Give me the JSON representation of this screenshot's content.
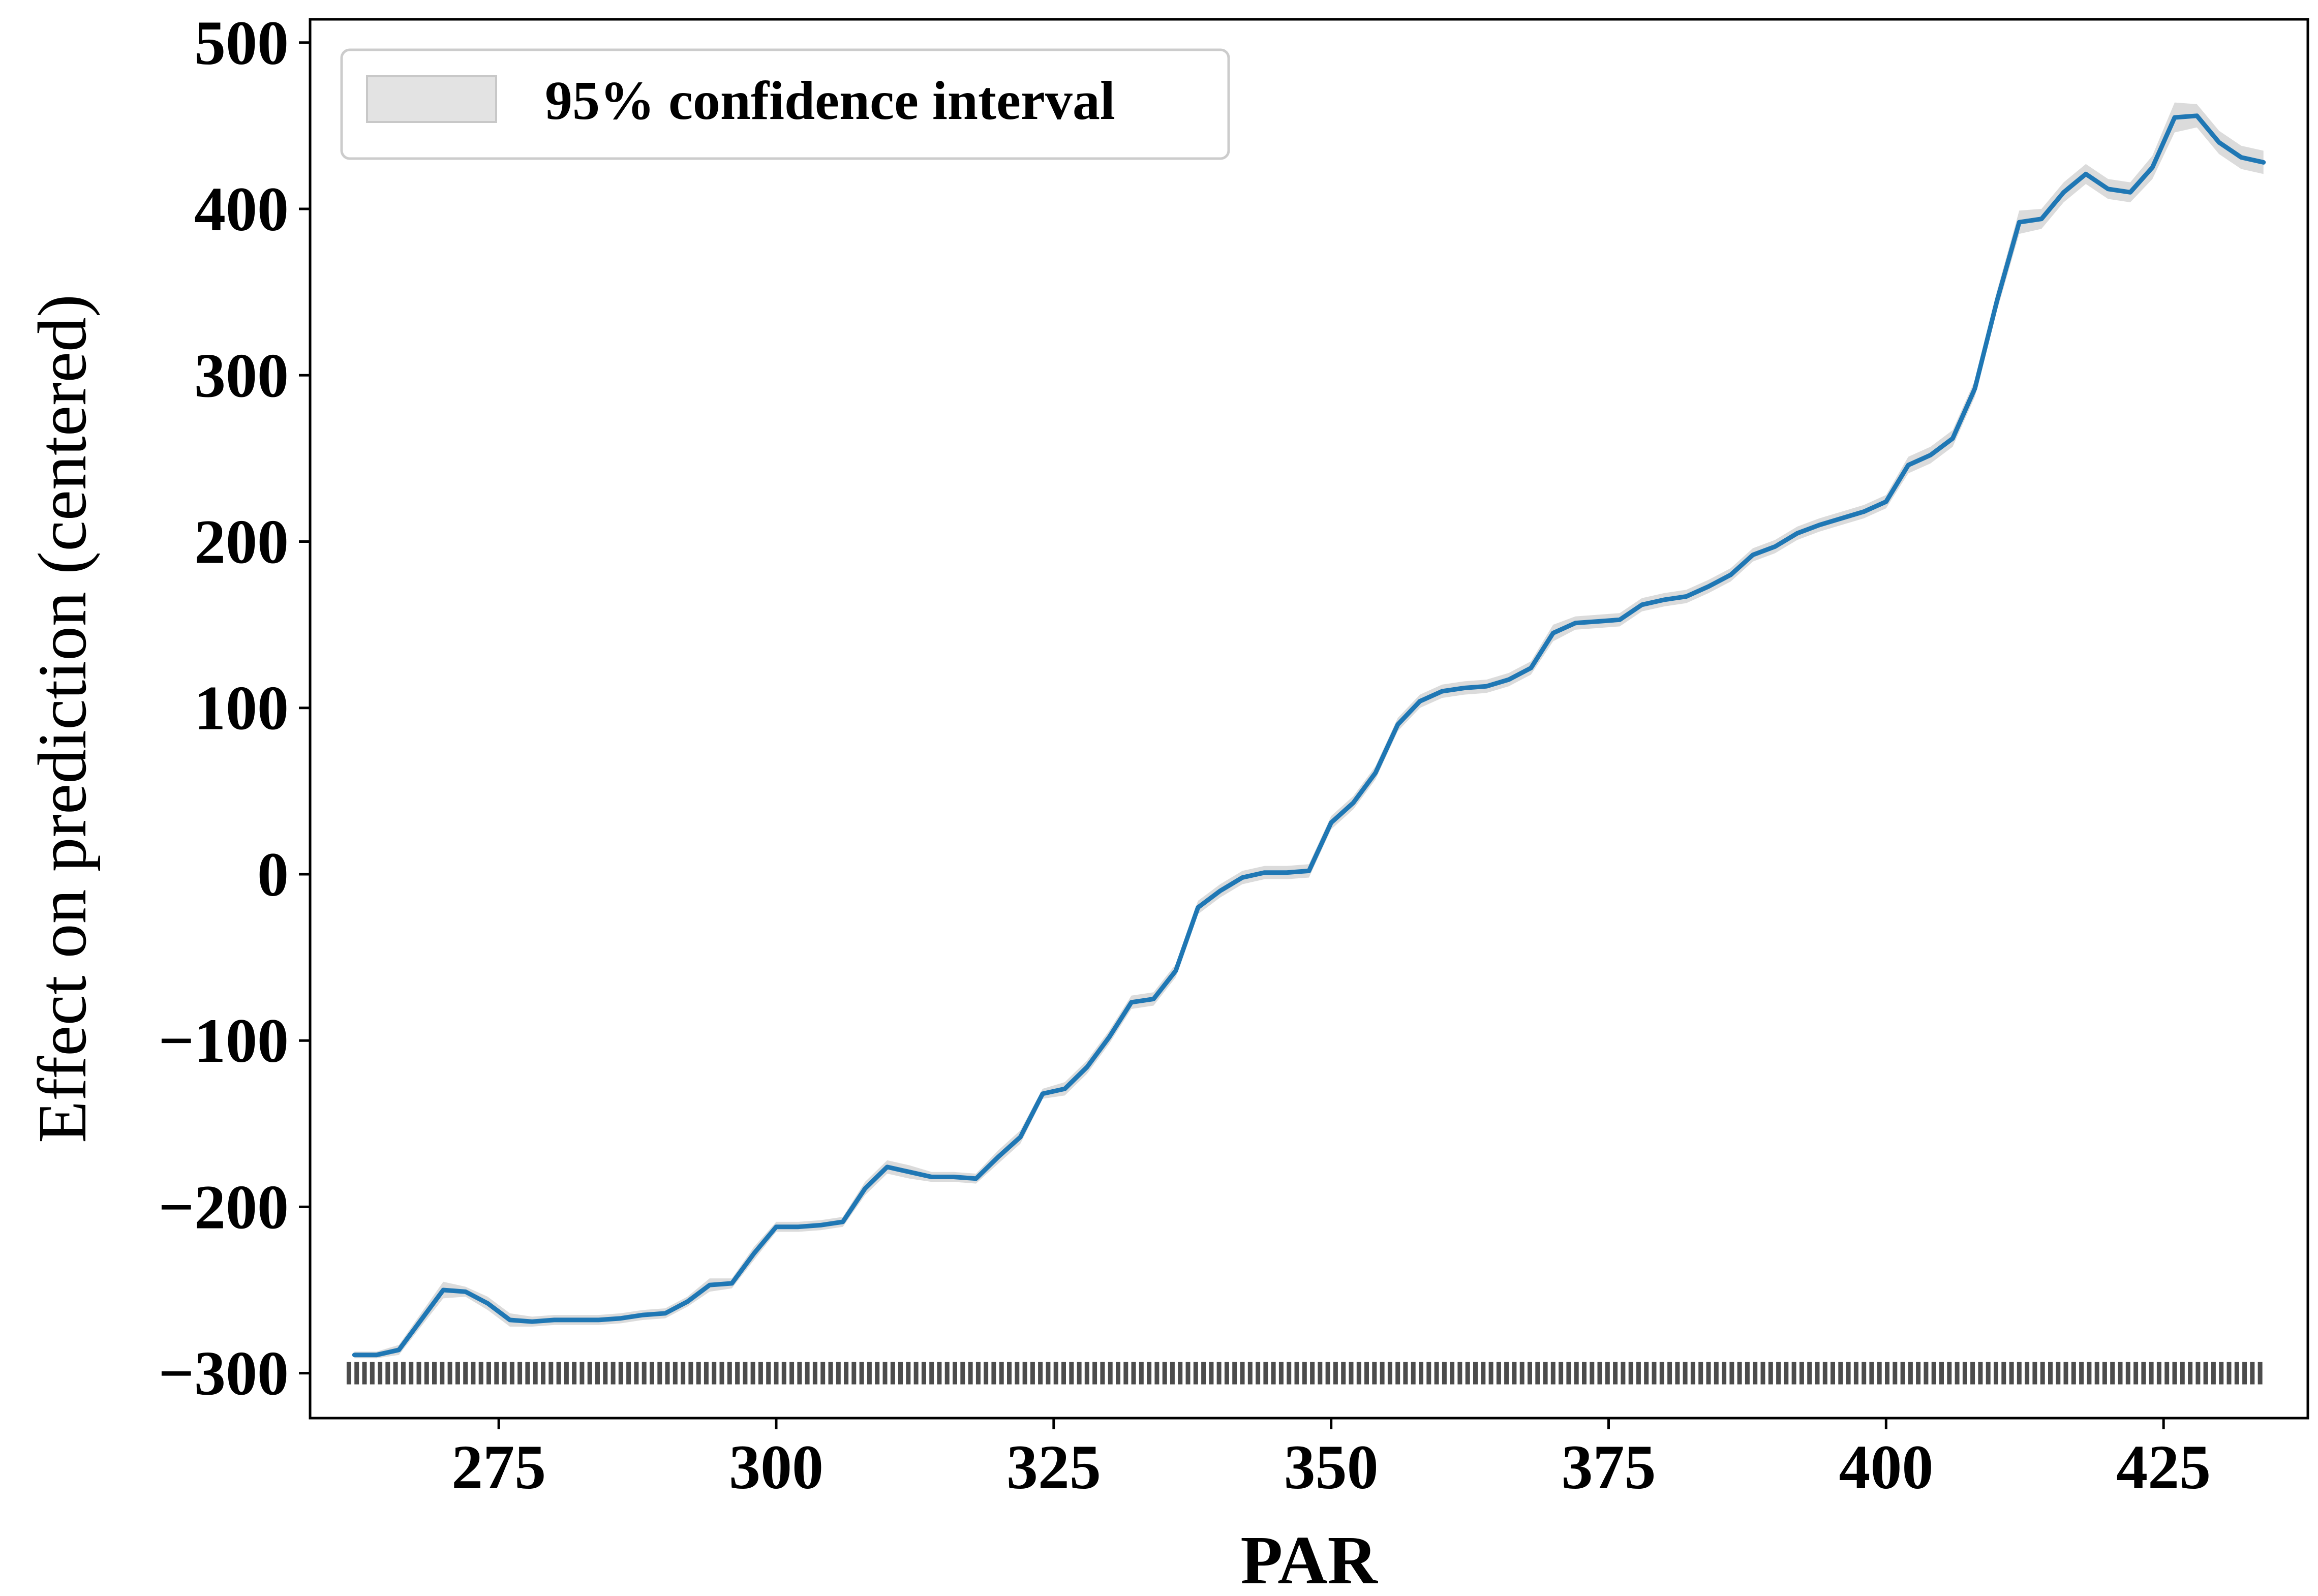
{
  "chart_data": {
    "type": "line",
    "title": "",
    "xlabel": "PAR",
    "ylabel": "Effect on prediction (centered)",
    "xlim": [
      258,
      438
    ],
    "ylim": [
      -327,
      514
    ],
    "xticks": [
      275,
      300,
      325,
      350,
      375,
      400,
      425
    ],
    "yticks": [
      -300,
      -200,
      -100,
      0,
      100,
      200,
      300,
      400,
      500
    ],
    "xtick_labels": [
      "275",
      "300",
      "325",
      "350",
      "375",
      "400",
      "425"
    ],
    "ytick_labels": [
      "−300",
      "−200",
      "−100",
      "0",
      "100",
      "200",
      "300",
      "400",
      "500"
    ],
    "grid": false,
    "legend": {
      "position": "top-left",
      "entries": [
        "95% confidence interval"
      ]
    },
    "colors": {
      "line": "#1f77b4",
      "band": "#cccccc",
      "rug": "#000000"
    },
    "series": [
      {
        "x": [
          262,
          264,
          266,
          268,
          270,
          272,
          274,
          276,
          278,
          280,
          282,
          284,
          286,
          288,
          290,
          292,
          294,
          296,
          298,
          300,
          302,
          304,
          306,
          308,
          310,
          312,
          314,
          316,
          318,
          320,
          322,
          324,
          326,
          328,
          330,
          332,
          334,
          336,
          338,
          340,
          342,
          344,
          346,
          348,
          350,
          352,
          354,
          356,
          358,
          360,
          362,
          364,
          366,
          368,
          370,
          372,
          374,
          376,
          378,
          380,
          382,
          384,
          386,
          388,
          390,
          392,
          394,
          396,
          398,
          400,
          402,
          404,
          406,
          408,
          410,
          412,
          414,
          416,
          418,
          420,
          422,
          424,
          426,
          428,
          430,
          432,
          434
        ],
        "y": [
          -289,
          -289,
          -286,
          -268,
          -250,
          -251,
          -258,
          -268,
          -269,
          -268,
          -268,
          -268,
          -267,
          -265,
          -264,
          -257,
          -247,
          -246,
          -228,
          -212,
          -212,
          -211,
          -209,
          -189,
          -176,
          -179,
          -182,
          -182,
          -183,
          -170,
          -158,
          -132,
          -129,
          -116,
          -98,
          -77,
          -75,
          -58,
          -20,
          -10,
          -2,
          1,
          1,
          2,
          31,
          43,
          61,
          90,
          104,
          110,
          112,
          113,
          117,
          124,
          145,
          151,
          152,
          153,
          162,
          165,
          167,
          173,
          180,
          192,
          197,
          205,
          210,
          214,
          218,
          224,
          246,
          252,
          262,
          292,
          345,
          392,
          394,
          410,
          421,
          412,
          410,
          425,
          455,
          456,
          440,
          431,
          428
        ],
        "lower": [
          -291,
          -291,
          -289,
          -272,
          -255,
          -254,
          -262,
          -272,
          -272,
          -271,
          -271,
          -271,
          -270,
          -268,
          -267,
          -260,
          -251,
          -249,
          -232,
          -215,
          -215,
          -214,
          -212,
          -193,
          -180,
          -183,
          -185,
          -185,
          -186,
          -174,
          -162,
          -135,
          -133,
          -120,
          -102,
          -81,
          -79,
          -62,
          -24,
          -14,
          -6,
          -3,
          -3,
          -2,
          27,
          39,
          57,
          86,
          100,
          106,
          108,
          109,
          113,
          120,
          140,
          147,
          148,
          149,
          158,
          161,
          163,
          169,
          176,
          188,
          193,
          201,
          206,
          210,
          214,
          220,
          241,
          247,
          257,
          287,
          339,
          385,
          388,
          404,
          415,
          406,
          404,
          418,
          446,
          449,
          433,
          424,
          421
        ],
        "upper": [
          -287,
          -287,
          -283,
          -264,
          -245,
          -248,
          -254,
          -264,
          -266,
          -265,
          -265,
          -265,
          -264,
          -262,
          -261,
          -254,
          -243,
          -243,
          -224,
          -209,
          -209,
          -208,
          -206,
          -185,
          -172,
          -175,
          -179,
          -179,
          -180,
          -166,
          -154,
          -129,
          -125,
          -112,
          -94,
          -73,
          -71,
          -54,
          -16,
          -6,
          2,
          5,
          5,
          6,
          35,
          47,
          65,
          94,
          108,
          114,
          116,
          117,
          121,
          128,
          150,
          155,
          156,
          157,
          166,
          169,
          171,
          177,
          184,
          196,
          201,
          209,
          214,
          218,
          222,
          228,
          251,
          257,
          267,
          297,
          351,
          399,
          400,
          416,
          427,
          418,
          416,
          432,
          464,
          463,
          447,
          438,
          435
        ]
      }
    ],
    "rug": {
      "y": -300,
      "x": [
        261.5,
        262.2,
        262.9,
        263.6,
        264.3,
        265.0,
        265.7,
        266.4,
        267.1,
        267.8,
        268.5,
        269.2,
        269.9,
        270.6,
        271.3,
        272.0,
        272.7,
        273.4,
        274.1,
        274.8,
        275.5,
        276.2,
        276.9,
        277.6,
        278.3,
        279.0,
        279.7,
        280.4,
        281.1,
        281.8,
        282.5,
        283.2,
        283.9,
        284.6,
        285.3,
        286.0,
        286.7,
        287.4,
        288.1,
        288.8,
        289.5,
        290.2,
        290.9,
        291.6,
        292.3,
        293.0,
        293.7,
        294.4,
        295.1,
        295.8,
        296.5,
        297.2,
        297.9,
        298.6,
        299.3,
        300.0,
        300.7,
        301.4,
        302.1,
        302.8,
        303.5,
        304.2,
        304.9,
        305.6,
        306.3,
        307.0,
        307.7,
        308.4,
        309.1,
        309.8,
        310.5,
        311.2,
        311.9,
        312.6,
        313.3,
        314.0,
        314.7,
        315.4,
        316.1,
        316.8,
        317.5,
        318.2,
        318.9,
        319.6,
        320.3,
        321.0,
        321.7,
        322.4,
        323.1,
        323.8,
        324.5,
        325.2,
        325.9,
        326.6,
        327.3,
        328.0,
        328.7,
        329.4,
        330.1,
        330.8,
        331.5,
        332.2,
        332.9,
        333.6,
        334.3,
        335.0,
        335.7,
        336.4,
        337.1,
        337.8,
        338.5,
        339.2,
        339.9,
        340.6,
        341.3,
        342.0,
        342.7,
        343.4,
        344.1,
        344.8,
        345.5,
        346.2,
        346.9,
        347.6,
        348.3,
        349.0,
        349.7,
        350.4,
        351.1,
        351.8,
        352.5,
        353.2,
        353.9,
        354.6,
        355.3,
        356.0,
        356.7,
        357.4,
        358.1,
        358.8,
        359.5,
        360.2,
        360.9,
        361.6,
        362.3,
        363.0,
        363.7,
        364.4,
        365.1,
        365.8,
        366.5,
        367.2,
        367.9,
        368.6,
        369.3,
        370.0,
        370.7,
        371.4,
        372.1,
        372.8,
        373.5,
        374.2,
        374.9,
        375.6,
        376.3,
        377.0,
        377.7,
        378.4,
        379.1,
        379.8,
        380.5,
        381.2,
        381.9,
        382.6,
        383.3,
        384.0,
        384.7,
        385.4,
        386.1,
        386.8,
        387.5,
        388.2,
        388.9,
        389.6,
        390.3,
        391.0,
        391.7,
        392.4,
        393.1,
        393.8,
        394.5,
        395.2,
        395.9,
        396.6,
        397.3,
        398.0,
        398.7,
        399.4,
        400.1,
        400.8,
        401.5,
        402.2,
        402.9,
        403.6,
        404.3,
        405.0,
        405.7,
        406.4,
        407.1,
        407.8,
        408.5,
        409.2,
        409.9,
        410.6,
        411.3,
        412.0,
        412.7,
        413.4,
        414.1,
        414.8,
        415.5,
        416.2,
        416.9,
        417.6,
        418.3,
        419.0,
        419.7,
        420.4,
        421.1,
        421.8,
        422.5,
        423.2,
        423.9,
        424.6,
        425.3,
        426.0,
        426.7,
        427.4,
        428.1,
        428.8,
        429.5,
        430.2,
        430.9,
        431.6,
        432.3,
        433.0,
        433.7
      ]
    }
  }
}
